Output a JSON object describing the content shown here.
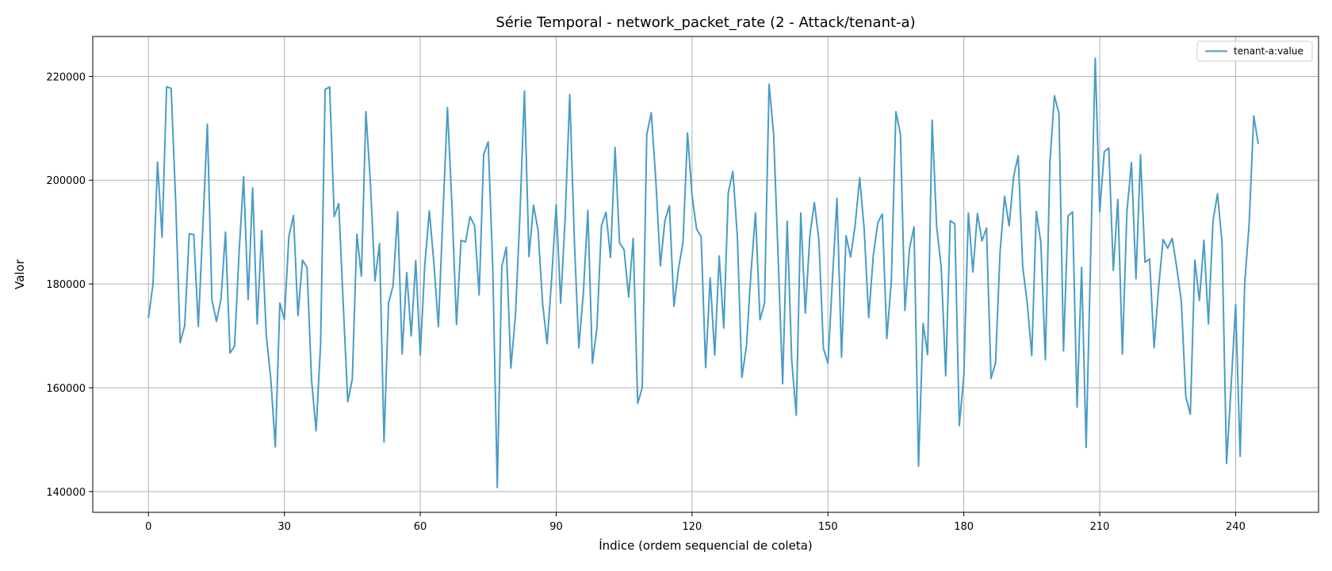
{
  "chart_data": {
    "type": "line",
    "title": "Série Temporal - network_packet_rate (2 - Attack/tenant-a)",
    "xlabel": "Índice (ordem sequencial de coleta)",
    "ylabel": "Valor",
    "xlim": [
      -12.3,
      258.3
    ],
    "ylim": [
      136000,
      227700
    ],
    "xticks": [
      0,
      30,
      60,
      90,
      120,
      150,
      180,
      210,
      240
    ],
    "yticks": [
      140000,
      160000,
      180000,
      200000,
      220000
    ],
    "grid": true,
    "legend_position": "top-right",
    "series": [
      {
        "name": "tenant-a:value",
        "color": "#4a9cc6",
        "x_start": 0,
        "x_step": 1,
        "values": [
          173500,
          180000,
          203500,
          189000,
          218000,
          217700,
          196000,
          168700,
          172000,
          189700,
          189500,
          171800,
          191000,
          210800,
          177000,
          172800,
          177000,
          190000,
          166700,
          168000,
          186000,
          200700,
          177000,
          198500,
          172300,
          190300,
          170200,
          161700,
          148600,
          176300,
          173200,
          189200,
          193200,
          173900,
          184600,
          183200,
          161500,
          151700,
          168500,
          217500,
          218000,
          193000,
          195500,
          176000,
          157300,
          161700,
          189600,
          181500,
          213200,
          199400,
          180600,
          187800,
          149500,
          176300,
          179700,
          193900,
          166500,
          182200,
          170000,
          184500,
          166300,
          183700,
          194100,
          184100,
          171800,
          193300,
          214000,
          195000,
          172200,
          188400,
          188100,
          193000,
          191200,
          177900,
          205000,
          207400,
          183300,
          140800,
          183300,
          187100,
          163800,
          173800,
          193200,
          217200,
          185300,
          195200,
          190400,
          176300,
          168500,
          181000,
          195300,
          176300,
          193000,
          216500,
          188800,
          167700,
          178300,
          194200,
          164700,
          171600,
          191300,
          193800,
          185100,
          206300,
          187900,
          186600,
          177500,
          188800,
          157000,
          160000,
          208800,
          213000,
          200000,
          183500,
          192200,
          195100,
          175700,
          182900,
          188000,
          209100,
          197000,
          190600,
          189100,
          163900,
          181200,
          166300,
          185400,
          171500,
          197600,
          201700,
          189200,
          162000,
          168000,
          182000,
          193700,
          173100,
          176300,
          218500,
          209000,
          185300,
          160800,
          192100,
          165400,
          154700,
          193700,
          174400,
          189200,
          195700,
          188500,
          167600,
          164700,
          181000,
          196500,
          165900,
          189300,
          185200,
          191300,
          200500,
          190600,
          173500,
          185400,
          191800,
          193500,
          169500,
          180700,
          213200,
          208900,
          174900,
          186800,
          191000,
          144900,
          172400,
          166400,
          211600,
          191000,
          183300,
          162300,
          192200,
          191600,
          152700,
          162400,
          193700,
          182300,
          193600,
          188300,
          190800,
          161800,
          164800,
          186200,
          196900,
          191200,
          200800,
          204700,
          183300,
          176300,
          166200,
          194000,
          188000,
          165400,
          203400,
          216300,
          212800,
          167100,
          193100,
          193900,
          156300,
          183200,
          148500,
          185500,
          223500,
          193900,
          205500,
          206200,
          182600,
          196300,
          166500,
          193900,
          203400,
          181000,
          204900,
          184200,
          184800,
          167700,
          179400,
          188600,
          186900,
          188800,
          183200,
          176800,
          158300,
          154900,
          184600,
          176800,
          188400,
          172300,
          192100,
          197400,
          188000,
          145400,
          160200,
          176000,
          146800,
          180000,
          191800,
          212400,
          207000
        ]
      }
    ]
  }
}
